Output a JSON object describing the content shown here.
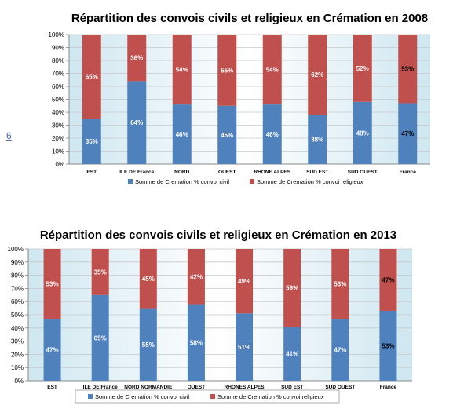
{
  "page": {
    "number_label": "6"
  },
  "colors": {
    "civil": "#4f81bd",
    "religieux": "#c0504d",
    "plot_bg_edge": "#cfe7f0",
    "plot_bg_center": "#ffffff",
    "grid": "#c8c8c8"
  },
  "chart_data": [
    {
      "type": "bar",
      "stacked": true,
      "percent": true,
      "title": "Répartition des convois civils et religieux en Crémation en 2008",
      "categories": [
        "EST",
        "ILE DE France",
        "NORD",
        "OUEST",
        "RHONE ALPES",
        "SUD EST",
        "SUD OUEST",
        "France"
      ],
      "series": [
        {
          "name": "Somme de Cremation % convoi civil",
          "values": [
            35,
            64,
            46,
            45,
            46,
            38,
            48,
            47
          ],
          "labels": [
            "35%",
            "64%",
            "46%",
            "45%",
            "46%",
            "38%",
            "48%",
            "47%"
          ],
          "color": "#4f81bd"
        },
        {
          "name": "Somme de Cremation % convoi religieux",
          "values": [
            65,
            36,
            54,
            55,
            54,
            62,
            52,
            53
          ],
          "labels": [
            "65%",
            "36%",
            "54%",
            "55%",
            "54%",
            "62%",
            "52%",
            "53%"
          ],
          "color": "#c0504d"
        }
      ],
      "highlight_category": "France",
      "ylim": [
        0,
        100
      ],
      "yticks": [
        "0%",
        "10%",
        "20%",
        "30%",
        "40%",
        "50%",
        "60%",
        "70%",
        "80%",
        "90%",
        "100%"
      ],
      "grid": true,
      "legend_position": "bottom"
    },
    {
      "type": "bar",
      "stacked": true,
      "percent": true,
      "title": "Répartition des convois civils et religieux en Crémation en 2013",
      "categories": [
        "EST",
        "ILE DE France",
        "NORD NORMANDIE",
        "OUEST",
        "RHONES ALPES",
        "SUD EST",
        "SUD OUEST",
        "France"
      ],
      "series": [
        {
          "name": "Somme de Cremation % convoi civil",
          "values": [
            47,
            65,
            55,
            58,
            51,
            41,
            47,
            53
          ],
          "labels": [
            "47%",
            "65%",
            "55%",
            "58%",
            "51%",
            "41%",
            "47%",
            "53%"
          ],
          "color": "#4f81bd"
        },
        {
          "name": "Somme de Cremation % convoi religieux",
          "values": [
            53,
            35,
            45,
            42,
            49,
            59,
            53,
            47
          ],
          "labels": [
            "53%",
            "35%",
            "45%",
            "42%",
            "49%",
            "59%",
            "53%",
            "47%"
          ],
          "color": "#c0504d"
        }
      ],
      "highlight_category": "France",
      "ylim": [
        0,
        100
      ],
      "yticks": [
        "0%",
        "10%",
        "20%",
        "30%",
        "40%",
        "50%",
        "60%",
        "70%",
        "80%",
        "90%",
        "100%"
      ],
      "grid": true,
      "legend_position": "bottom"
    }
  ]
}
